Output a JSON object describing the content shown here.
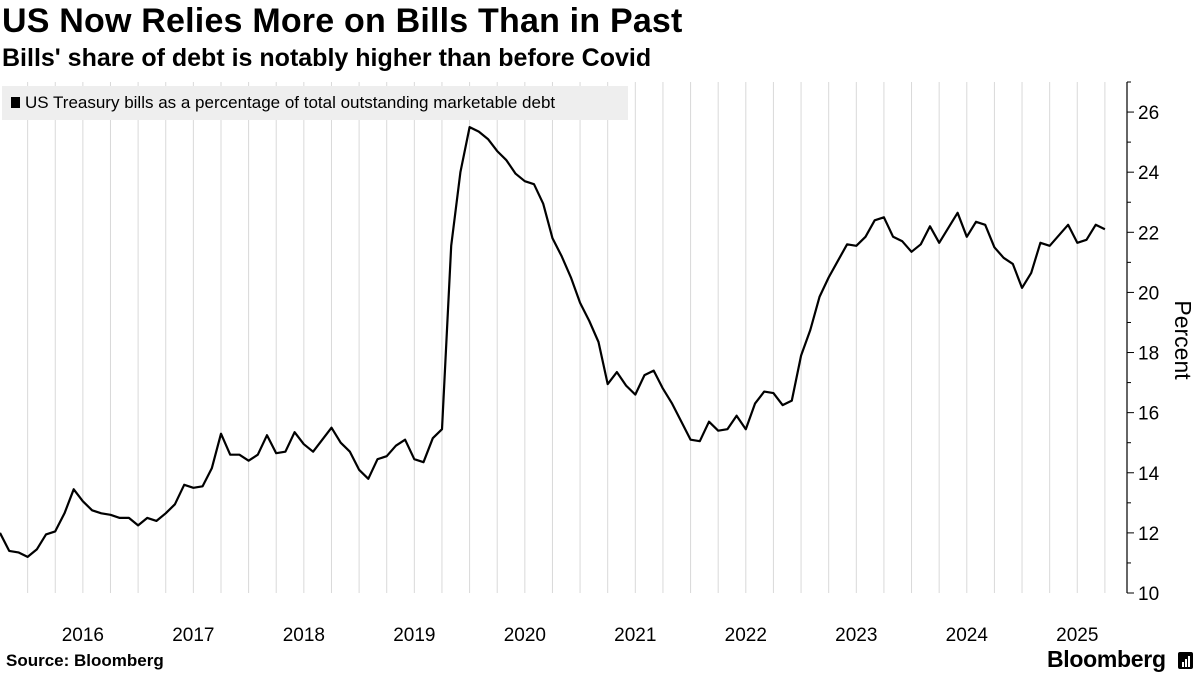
{
  "title": "US Now Relies More on Bills Than in Past",
  "subtitle": "Bills' share of debt is notably higher than before Covid",
  "source": "Source: Bloomberg",
  "brand": "Bloomberg",
  "colors": {
    "line": "#000000",
    "grid": "#d9d9d9",
    "legend_bg": "#eeeeee",
    "background": "#ffffff"
  },
  "chart_data": {
    "type": "line",
    "title": "US Now Relies More on Bills Than in Past",
    "subtitle": "Bills' share of debt is notably higher than before Covid",
    "ylabel": "Percent",
    "y_axis_side": "right",
    "ylim": [
      10,
      27
    ],
    "y_ticks": [
      10,
      12,
      14,
      16,
      18,
      20,
      22,
      24,
      26
    ],
    "x_ticks": [
      "2016",
      "2017",
      "2018",
      "2019",
      "2020",
      "2021",
      "2022",
      "2023",
      "2024",
      "2025"
    ],
    "grid": {
      "vertical": true,
      "horizontal": false
    },
    "legend": {
      "position": "top-left",
      "entries": [
        "US Treasury bills as a percentage of total outstanding marketable debt"
      ]
    },
    "series": [
      {
        "name": "US Treasury bills as a percentage of total outstanding marketable debt",
        "x": [
          "2015-10",
          "2015-11",
          "2015-12",
          "2016-01",
          "2016-02",
          "2016-03",
          "2016-04",
          "2016-05",
          "2016-06",
          "2016-07",
          "2016-08",
          "2016-09",
          "2016-10",
          "2016-11",
          "2016-12",
          "2017-01",
          "2017-02",
          "2017-03",
          "2017-04",
          "2017-05",
          "2017-06",
          "2017-07",
          "2017-08",
          "2017-09",
          "2017-10",
          "2017-11",
          "2017-12",
          "2018-01",
          "2018-02",
          "2018-03",
          "2018-04",
          "2018-05",
          "2018-06",
          "2018-07",
          "2018-08",
          "2018-09",
          "2018-10",
          "2018-11",
          "2018-12",
          "2019-01",
          "2019-02",
          "2019-03",
          "2019-04",
          "2019-05",
          "2019-06",
          "2019-07",
          "2019-08",
          "2019-09",
          "2019-10",
          "2019-11",
          "2019-12",
          "2020-01",
          "2020-02",
          "2020-03",
          "2020-04",
          "2020-05",
          "2020-06",
          "2020-07",
          "2020-08",
          "2020-09",
          "2020-10",
          "2020-11",
          "2020-12",
          "2021-01",
          "2021-02",
          "2021-03",
          "2021-04",
          "2021-05",
          "2021-06",
          "2021-07",
          "2021-08",
          "2021-09",
          "2021-10",
          "2021-11",
          "2021-12",
          "2022-01",
          "2022-02",
          "2022-03",
          "2022-04",
          "2022-05",
          "2022-06",
          "2022-07",
          "2022-08",
          "2022-09",
          "2022-10",
          "2022-11",
          "2022-12",
          "2023-01",
          "2023-02",
          "2023-03",
          "2023-04",
          "2023-05",
          "2023-06",
          "2023-07",
          "2023-08",
          "2023-09",
          "2023-10",
          "2023-11",
          "2023-12",
          "2024-01",
          "2024-02",
          "2024-03",
          "2024-04",
          "2024-05",
          "2024-06",
          "2024-07",
          "2024-08",
          "2024-09",
          "2024-10",
          "2024-11",
          "2024-12",
          "2025-01",
          "2025-02",
          "2025-03",
          "2025-04",
          "2025-05",
          "2025-06",
          "2025-07",
          "2025-08",
          "2025-09",
          "2025-10"
        ],
        "values": [
          12.0,
          11.4,
          11.35,
          11.2,
          11.45,
          11.95,
          12.05,
          12.65,
          13.45,
          13.05,
          12.75,
          12.65,
          12.6,
          12.5,
          12.5,
          12.25,
          12.5,
          12.4,
          12.65,
          12.95,
          13.6,
          13.5,
          13.55,
          14.15,
          15.3,
          14.6,
          14.6,
          14.4,
          14.6,
          15.25,
          14.65,
          14.7,
          15.35,
          14.95,
          14.7,
          15.1,
          15.5,
          15.0,
          14.7,
          14.1,
          13.8,
          14.45,
          14.55,
          14.9,
          15.1,
          14.45,
          14.35,
          15.15,
          15.45,
          21.55,
          24.0,
          25.5,
          25.35,
          25.1,
          24.7,
          24.4,
          23.95,
          23.7,
          23.6,
          22.95,
          21.8,
          21.2,
          20.5,
          19.65,
          19.05,
          18.35,
          16.95,
          17.35,
          16.9,
          16.6,
          17.25,
          17.4,
          16.8,
          16.3,
          15.7,
          15.1,
          15.05,
          15.7,
          15.4,
          15.45,
          15.9,
          15.45,
          16.3,
          16.7,
          16.65,
          16.25,
          16.4,
          17.9,
          18.75,
          19.85,
          20.5,
          21.05,
          21.6,
          21.55,
          21.85,
          22.4,
          22.5,
          21.85,
          21.7,
          21.35,
          21.6,
          22.2,
          21.65,
          22.15,
          22.65,
          21.85,
          22.35,
          22.25,
          21.5,
          21.15,
          20.95,
          20.15,
          20.65,
          21.65,
          21.55,
          21.9,
          22.25,
          21.65,
          21.75,
          22.25,
          22.1
        ]
      }
    ]
  }
}
